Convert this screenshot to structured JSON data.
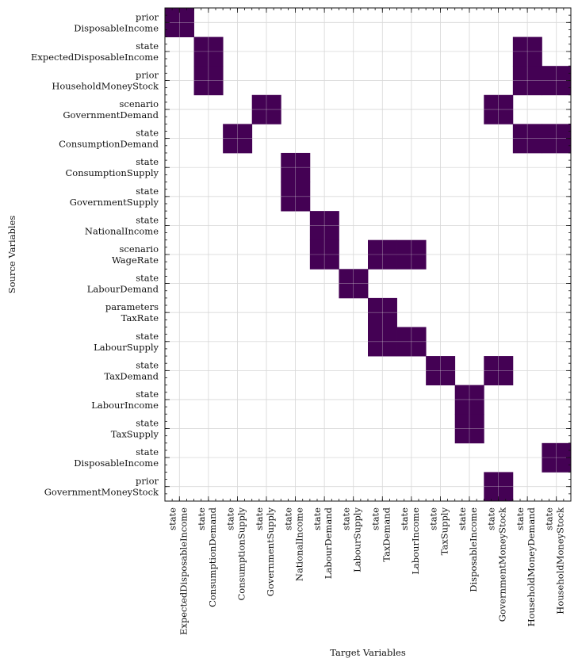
{
  "chart_data": {
    "type": "heatmap",
    "title": "",
    "xlabel": "Target Variables",
    "ylabel": "Source Variables",
    "grid": true,
    "cell_color": "#440154",
    "background_color": "#ffffff",
    "grid_color": "#d9d9d9",
    "x_categories": [
      {
        "prefix": "state",
        "name": "ExpectedDisposableIncome"
      },
      {
        "prefix": "state",
        "name": "ConsumptionDemand"
      },
      {
        "prefix": "state",
        "name": "ConsumptionSupply"
      },
      {
        "prefix": "state",
        "name": "GovernmentSupply"
      },
      {
        "prefix": "state",
        "name": "NationalIncome"
      },
      {
        "prefix": "state",
        "name": "LabourDemand"
      },
      {
        "prefix": "state",
        "name": "LabourSupply"
      },
      {
        "prefix": "state",
        "name": "TaxDemand"
      },
      {
        "prefix": "state",
        "name": "LabourIncome"
      },
      {
        "prefix": "state",
        "name": "TaxSupply"
      },
      {
        "prefix": "state",
        "name": "DisposableIncome"
      },
      {
        "prefix": "state",
        "name": "GovernmentMoneyStock"
      },
      {
        "prefix": "state",
        "name": "HouseholdMoneyDemand"
      },
      {
        "prefix": "state",
        "name": "HouseholdMoneyStock"
      }
    ],
    "y_categories": [
      {
        "prefix": "prior",
        "name": "DisposableIncome"
      },
      {
        "prefix": "state",
        "name": "ExpectedDisposableIncome"
      },
      {
        "prefix": "prior",
        "name": "HouseholdMoneyStock"
      },
      {
        "prefix": "scenario",
        "name": "GovernmentDemand"
      },
      {
        "prefix": "state",
        "name": "ConsumptionDemand"
      },
      {
        "prefix": "state",
        "name": "ConsumptionSupply"
      },
      {
        "prefix": "state",
        "name": "GovernmentSupply"
      },
      {
        "prefix": "state",
        "name": "NationalIncome"
      },
      {
        "prefix": "scenario",
        "name": "WageRate"
      },
      {
        "prefix": "state",
        "name": "LabourDemand"
      },
      {
        "prefix": "parameters",
        "name": "TaxRate"
      },
      {
        "prefix": "state",
        "name": "LabourSupply"
      },
      {
        "prefix": "state",
        "name": "TaxDemand"
      },
      {
        "prefix": "state",
        "name": "LabourIncome"
      },
      {
        "prefix": "state",
        "name": "TaxSupply"
      },
      {
        "prefix": "state",
        "name": "DisposableIncome"
      },
      {
        "prefix": "prior",
        "name": "GovernmentMoneyStock"
      }
    ],
    "cells": [
      [
        0,
        0
      ],
      [
        1,
        1
      ],
      [
        1,
        12
      ],
      [
        2,
        1
      ],
      [
        2,
        12
      ],
      [
        2,
        13
      ],
      [
        3,
        3
      ],
      [
        3,
        11
      ],
      [
        4,
        2
      ],
      [
        4,
        12
      ],
      [
        4,
        13
      ],
      [
        5,
        4
      ],
      [
        6,
        4
      ],
      [
        7,
        5
      ],
      [
        8,
        5
      ],
      [
        8,
        7
      ],
      [
        8,
        8
      ],
      [
        9,
        6
      ],
      [
        10,
        7
      ],
      [
        11,
        7
      ],
      [
        11,
        8
      ],
      [
        12,
        9
      ],
      [
        12,
        11
      ],
      [
        13,
        10
      ],
      [
        14,
        10
      ],
      [
        15,
        13
      ],
      [
        16,
        11
      ]
    ]
  }
}
